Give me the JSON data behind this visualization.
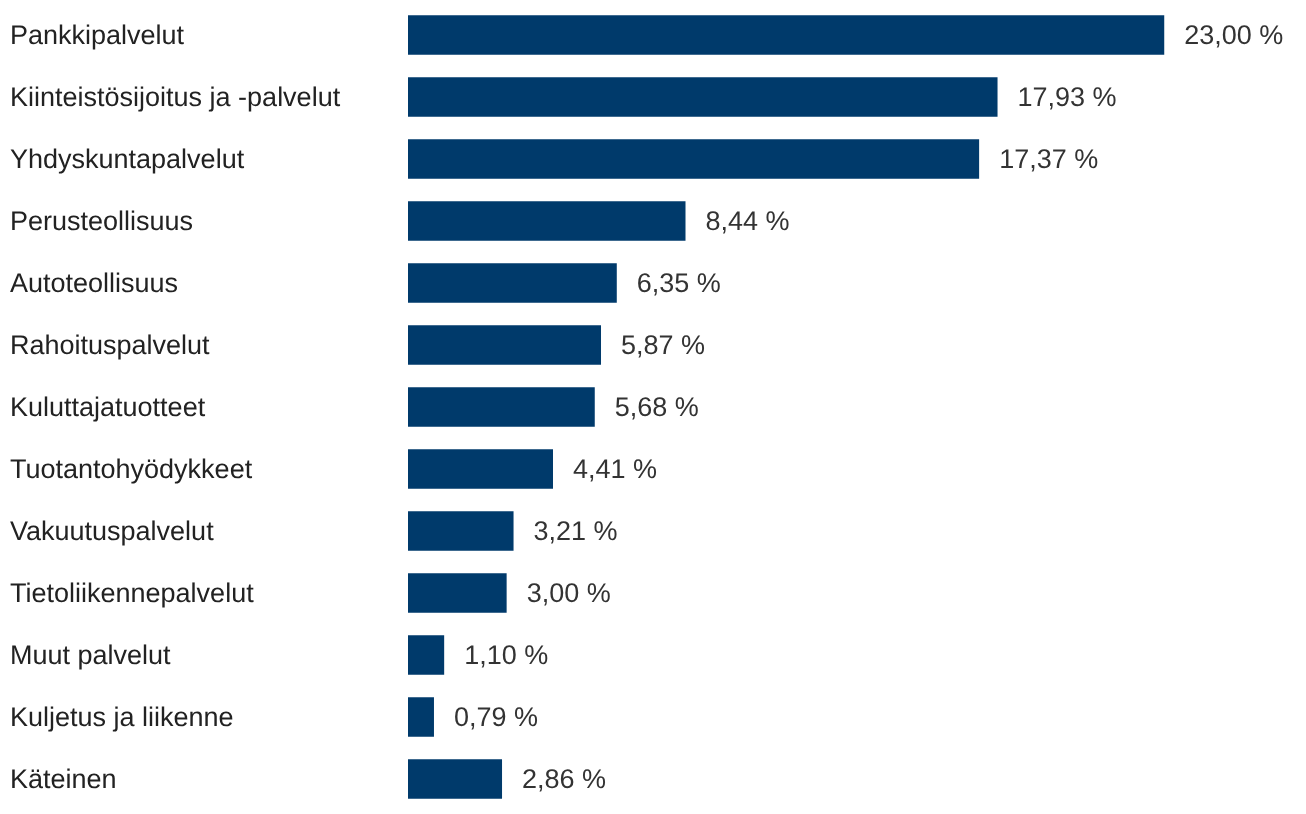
{
  "chart_data": {
    "type": "bar",
    "orientation": "horizontal",
    "categories": [
      "Pankkipalvelut",
      "Kiinteistösijoitus ja -palvelut",
      "Yhdyskuntapalvelut",
      "Perusteollisuus",
      "Autoteollisuus",
      "Rahoituspalvelut",
      "Kuluttajatuotteet",
      "Tuotantohyödykkeet",
      "Vakuutuspalvelut",
      "Tietoliikennepalvelut",
      "Muut palvelut",
      "Kuljetus ja liikenne",
      "Käteinen"
    ],
    "values": [
      23.0,
      17.93,
      17.37,
      8.44,
      6.35,
      5.87,
      5.68,
      4.41,
      3.21,
      3.0,
      1.1,
      0.79,
      2.86
    ],
    "value_labels": [
      "23,00 %",
      "17,93 %",
      "17,37 %",
      "8,44 %",
      "6,35 %",
      "5,87 %",
      "5,68 %",
      "4,41 %",
      "3,21 %",
      "3,00 %",
      "1,10 %",
      "0,79 %",
      "2,86 %"
    ],
    "color": "#003a6b"
  }
}
